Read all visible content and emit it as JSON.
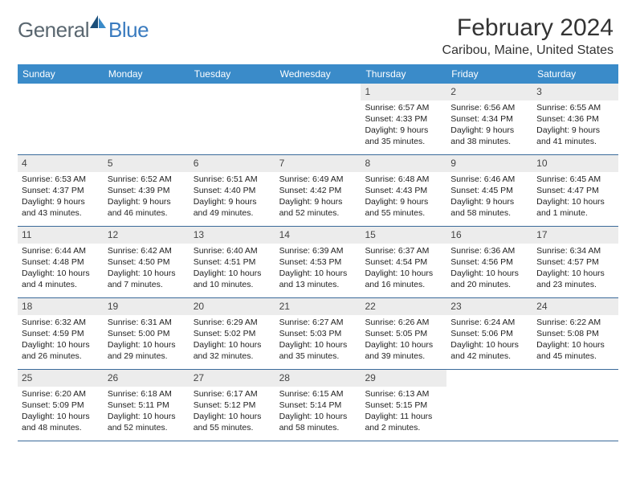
{
  "logo": {
    "general": "General",
    "blue": "Blue"
  },
  "title": "February 2024",
  "location": "Caribou, Maine, United States",
  "colors": {
    "header_bg": "#3a8bc9",
    "header_text": "#ffffff",
    "row_border": "#3a6a9a",
    "daynum_bg": "#ececec",
    "logo_gray": "#5a6770",
    "logo_blue": "#3a7bbf"
  },
  "day_names": [
    "Sunday",
    "Monday",
    "Tuesday",
    "Wednesday",
    "Thursday",
    "Friday",
    "Saturday"
  ],
  "weeks": [
    [
      null,
      null,
      null,
      null,
      {
        "n": "1",
        "sr": "Sunrise: 6:57 AM",
        "ss": "Sunset: 4:33 PM",
        "d1": "Daylight: 9 hours",
        "d2": "and 35 minutes."
      },
      {
        "n": "2",
        "sr": "Sunrise: 6:56 AM",
        "ss": "Sunset: 4:34 PM",
        "d1": "Daylight: 9 hours",
        "d2": "and 38 minutes."
      },
      {
        "n": "3",
        "sr": "Sunrise: 6:55 AM",
        "ss": "Sunset: 4:36 PM",
        "d1": "Daylight: 9 hours",
        "d2": "and 41 minutes."
      }
    ],
    [
      {
        "n": "4",
        "sr": "Sunrise: 6:53 AM",
        "ss": "Sunset: 4:37 PM",
        "d1": "Daylight: 9 hours",
        "d2": "and 43 minutes."
      },
      {
        "n": "5",
        "sr": "Sunrise: 6:52 AM",
        "ss": "Sunset: 4:39 PM",
        "d1": "Daylight: 9 hours",
        "d2": "and 46 minutes."
      },
      {
        "n": "6",
        "sr": "Sunrise: 6:51 AM",
        "ss": "Sunset: 4:40 PM",
        "d1": "Daylight: 9 hours",
        "d2": "and 49 minutes."
      },
      {
        "n": "7",
        "sr": "Sunrise: 6:49 AM",
        "ss": "Sunset: 4:42 PM",
        "d1": "Daylight: 9 hours",
        "d2": "and 52 minutes."
      },
      {
        "n": "8",
        "sr": "Sunrise: 6:48 AM",
        "ss": "Sunset: 4:43 PM",
        "d1": "Daylight: 9 hours",
        "d2": "and 55 minutes."
      },
      {
        "n": "9",
        "sr": "Sunrise: 6:46 AM",
        "ss": "Sunset: 4:45 PM",
        "d1": "Daylight: 9 hours",
        "d2": "and 58 minutes."
      },
      {
        "n": "10",
        "sr": "Sunrise: 6:45 AM",
        "ss": "Sunset: 4:47 PM",
        "d1": "Daylight: 10 hours",
        "d2": "and 1 minute."
      }
    ],
    [
      {
        "n": "11",
        "sr": "Sunrise: 6:44 AM",
        "ss": "Sunset: 4:48 PM",
        "d1": "Daylight: 10 hours",
        "d2": "and 4 minutes."
      },
      {
        "n": "12",
        "sr": "Sunrise: 6:42 AM",
        "ss": "Sunset: 4:50 PM",
        "d1": "Daylight: 10 hours",
        "d2": "and 7 minutes."
      },
      {
        "n": "13",
        "sr": "Sunrise: 6:40 AM",
        "ss": "Sunset: 4:51 PM",
        "d1": "Daylight: 10 hours",
        "d2": "and 10 minutes."
      },
      {
        "n": "14",
        "sr": "Sunrise: 6:39 AM",
        "ss": "Sunset: 4:53 PM",
        "d1": "Daylight: 10 hours",
        "d2": "and 13 minutes."
      },
      {
        "n": "15",
        "sr": "Sunrise: 6:37 AM",
        "ss": "Sunset: 4:54 PM",
        "d1": "Daylight: 10 hours",
        "d2": "and 16 minutes."
      },
      {
        "n": "16",
        "sr": "Sunrise: 6:36 AM",
        "ss": "Sunset: 4:56 PM",
        "d1": "Daylight: 10 hours",
        "d2": "and 20 minutes."
      },
      {
        "n": "17",
        "sr": "Sunrise: 6:34 AM",
        "ss": "Sunset: 4:57 PM",
        "d1": "Daylight: 10 hours",
        "d2": "and 23 minutes."
      }
    ],
    [
      {
        "n": "18",
        "sr": "Sunrise: 6:32 AM",
        "ss": "Sunset: 4:59 PM",
        "d1": "Daylight: 10 hours",
        "d2": "and 26 minutes."
      },
      {
        "n": "19",
        "sr": "Sunrise: 6:31 AM",
        "ss": "Sunset: 5:00 PM",
        "d1": "Daylight: 10 hours",
        "d2": "and 29 minutes."
      },
      {
        "n": "20",
        "sr": "Sunrise: 6:29 AM",
        "ss": "Sunset: 5:02 PM",
        "d1": "Daylight: 10 hours",
        "d2": "and 32 minutes."
      },
      {
        "n": "21",
        "sr": "Sunrise: 6:27 AM",
        "ss": "Sunset: 5:03 PM",
        "d1": "Daylight: 10 hours",
        "d2": "and 35 minutes."
      },
      {
        "n": "22",
        "sr": "Sunrise: 6:26 AM",
        "ss": "Sunset: 5:05 PM",
        "d1": "Daylight: 10 hours",
        "d2": "and 39 minutes."
      },
      {
        "n": "23",
        "sr": "Sunrise: 6:24 AM",
        "ss": "Sunset: 5:06 PM",
        "d1": "Daylight: 10 hours",
        "d2": "and 42 minutes."
      },
      {
        "n": "24",
        "sr": "Sunrise: 6:22 AM",
        "ss": "Sunset: 5:08 PM",
        "d1": "Daylight: 10 hours",
        "d2": "and 45 minutes."
      }
    ],
    [
      {
        "n": "25",
        "sr": "Sunrise: 6:20 AM",
        "ss": "Sunset: 5:09 PM",
        "d1": "Daylight: 10 hours",
        "d2": "and 48 minutes."
      },
      {
        "n": "26",
        "sr": "Sunrise: 6:18 AM",
        "ss": "Sunset: 5:11 PM",
        "d1": "Daylight: 10 hours",
        "d2": "and 52 minutes."
      },
      {
        "n": "27",
        "sr": "Sunrise: 6:17 AM",
        "ss": "Sunset: 5:12 PM",
        "d1": "Daylight: 10 hours",
        "d2": "and 55 minutes."
      },
      {
        "n": "28",
        "sr": "Sunrise: 6:15 AM",
        "ss": "Sunset: 5:14 PM",
        "d1": "Daylight: 10 hours",
        "d2": "and 58 minutes."
      },
      {
        "n": "29",
        "sr": "Sunrise: 6:13 AM",
        "ss": "Sunset: 5:15 PM",
        "d1": "Daylight: 11 hours",
        "d2": "and 2 minutes."
      },
      null,
      null
    ]
  ]
}
